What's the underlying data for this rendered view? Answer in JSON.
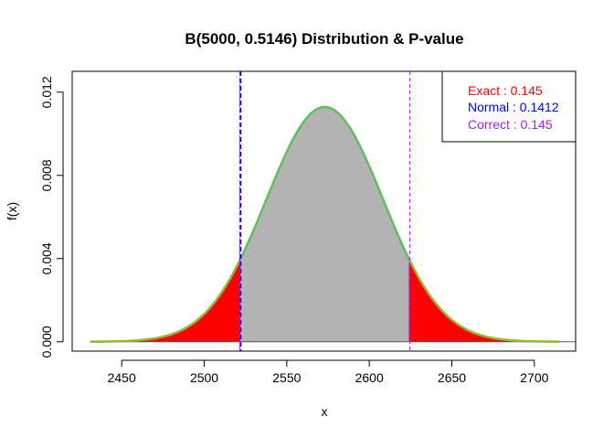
{
  "chart_data": {
    "type": "area",
    "title": "B(5000, 0.5146) Distribution & P-value",
    "xlabel": "x",
    "ylabel": "f(x)",
    "distribution": {
      "n": 5000,
      "p": 0.5146
    },
    "xlim": [
      2420,
      2725
    ],
    "ylim": [
      -0.00045,
      0.013
    ],
    "x_ticks": [
      2450,
      2500,
      2550,
      2600,
      2650,
      2700
    ],
    "y_ticks": [
      0.0,
      0.004,
      0.008,
      0.012
    ],
    "y_tick_labels": [
      "0.000",
      "0.004",
      "0.008",
      "0.012"
    ],
    "x_range": [
      2431,
      2715
    ],
    "critical_lines": {
      "lower": 2522,
      "upper": 2624
    },
    "normal_lines": {
      "lower": 2521.5,
      "upper": 2624.5
    },
    "regions": {
      "left_tail": [
        2431,
        2522
      ],
      "middle": [
        2522,
        2624
      ],
      "right_tail": [
        2624,
        2715
      ]
    },
    "legend": {
      "position": "top-right",
      "entries": [
        {
          "label": "Exact : 0.145",
          "color": "#ff0000"
        },
        {
          "label": "Normal : 0.1412",
          "color": "#0000ff"
        },
        {
          "label": "Correct : 0.145",
          "color": "#a020f0"
        }
      ]
    },
    "colors": {
      "tail_fill": "#ff0000",
      "middle_fill": "#b3b3b3",
      "pmf_curve": "#5fbf5f",
      "tail_curve": "#c8a800",
      "critical_line": "#0000ff",
      "normal_line": "#a020f0"
    }
  }
}
